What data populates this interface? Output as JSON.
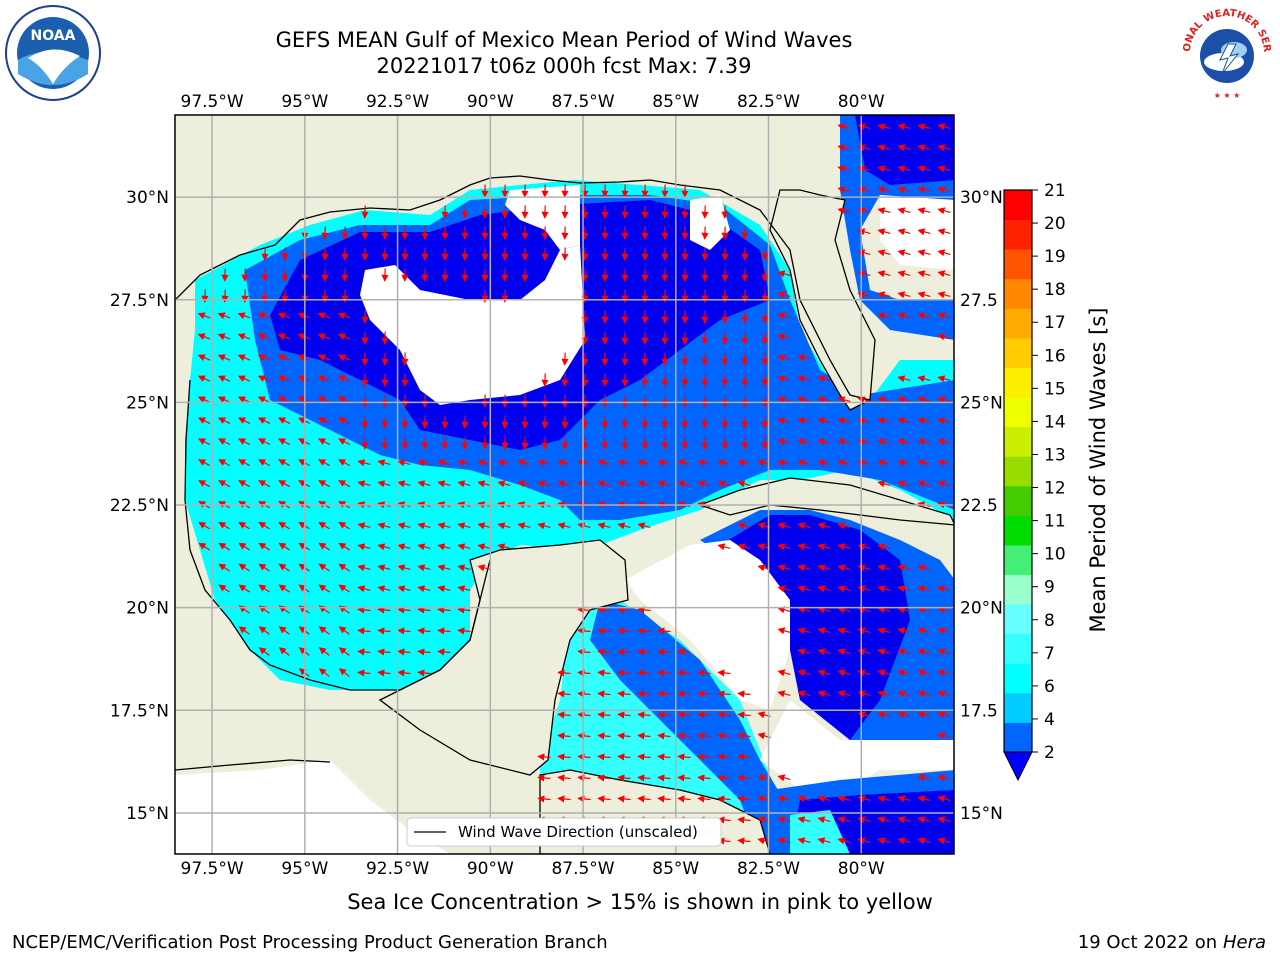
{
  "title": {
    "line1": "GEFS MEAN Gulf of Mexico Mean Period of Wind Waves",
    "line2": "20221017 t06z 000h fcst   Max: 7.39"
  },
  "caption": "Sea Ice Concentration > 15% is shown in pink to yellow",
  "footer": {
    "left": "NCEP/EMC/Verification Post Processing Product Generation Branch",
    "right_date": "19 Oct 2022 on ",
    "right_host": "Hera"
  },
  "logos": {
    "noaa_text": "NOAA",
    "nws_text": "NATIONAL WEATHER SERVICE"
  },
  "legend": {
    "label": "Wind Wave Direction (unscaled)"
  },
  "map": {
    "lon_range": [
      -98.5,
      -77.5
    ],
    "lat_range": [
      14,
      32
    ],
    "lon_ticks": [
      "97.5°W",
      "95°W",
      "92.5°W",
      "90°W",
      "87.5°W",
      "85°W",
      "82.5°W",
      "80°W"
    ],
    "lat_ticks_left": [
      "15°N",
      "17.5°N",
      "20°N",
      "22.5°N",
      "25°N",
      "27.5°N",
      "30°N"
    ],
    "lat_ticks_right": [
      "15°N",
      "17.5",
      "20°N",
      "22.5",
      "25°N",
      "27.5",
      "30°N"
    ],
    "land_color": "#eeeedc",
    "arrow_color": "#ff0000"
  },
  "colorbar": {
    "label": "Mean Period of Wind Waves [s]",
    "ticks": [
      "2",
      "4",
      "6",
      "7",
      "8",
      "9",
      "10",
      "11",
      "12",
      "13",
      "14",
      "15",
      "16",
      "17",
      "18",
      "19",
      "20",
      "21"
    ],
    "colors": [
      "#0066ff",
      "#00ccff",
      "#00ffff",
      "#33ffff",
      "#66ffff",
      "#99ffcc",
      "#44ee77",
      "#00dd00",
      "#44cc00",
      "#99dd00",
      "#ccee00",
      "#eeff00",
      "#ffee00",
      "#ffcc00",
      "#ffaa00",
      "#ff8800",
      "#ff5500",
      "#ff2200",
      "#ff0000"
    ],
    "extend_color": "#0000ff"
  }
}
